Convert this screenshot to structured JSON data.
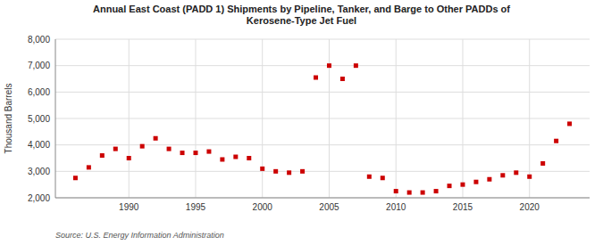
{
  "chart_data": {
    "type": "scatter",
    "title": "Annual East Coast (PADD 1) Shipments by Pipeline, Tanker, and Barge to Other PADDs of\nKerosene-Type Jet Fuel",
    "ylabel": "Thousand Barrels",
    "source": "Source: U.S. Energy Information Administration",
    "x": [
      1986,
      1987,
      1988,
      1989,
      1990,
      1991,
      1992,
      1993,
      1994,
      1995,
      1996,
      1997,
      1998,
      1999,
      2000,
      2001,
      2002,
      2003,
      2004,
      2005,
      2006,
      2007,
      2008,
      2009,
      2010,
      2011,
      2012,
      2013,
      2014,
      2015,
      2016,
      2017,
      2018,
      2019,
      2020,
      2021,
      2022,
      2023
    ],
    "values": [
      2750,
      3150,
      3600,
      3850,
      3500,
      3950,
      4250,
      3850,
      3700,
      3700,
      3750,
      3450,
      3550,
      3500,
      3100,
      3000,
      2950,
      3000,
      6550,
      7000,
      6500,
      7000,
      2800,
      2750,
      2250,
      2200,
      2200,
      2250,
      2450,
      2500,
      2600,
      2700,
      2850,
      2950,
      2800,
      3300,
      4150,
      4800
    ],
    "color": "#cc0000",
    "marker": "square",
    "xlim": [
      1984.5,
      2024.5
    ],
    "xticks": [
      1990,
      1995,
      2000,
      2005,
      2010,
      2015,
      2020
    ],
    "ylim": [
      2000,
      8000
    ],
    "yticks": [
      {
        "value": 2000,
        "label": "2,000"
      },
      {
        "value": 3000,
        "label": "3,000"
      },
      {
        "value": 4000,
        "label": "4,000"
      },
      {
        "value": 5000,
        "label": "5,000"
      },
      {
        "value": 6000,
        "label": "6,000"
      },
      {
        "value": 7000,
        "label": "7,000"
      },
      {
        "value": 8000,
        "label": "8,000"
      }
    ],
    "grid": true
  }
}
